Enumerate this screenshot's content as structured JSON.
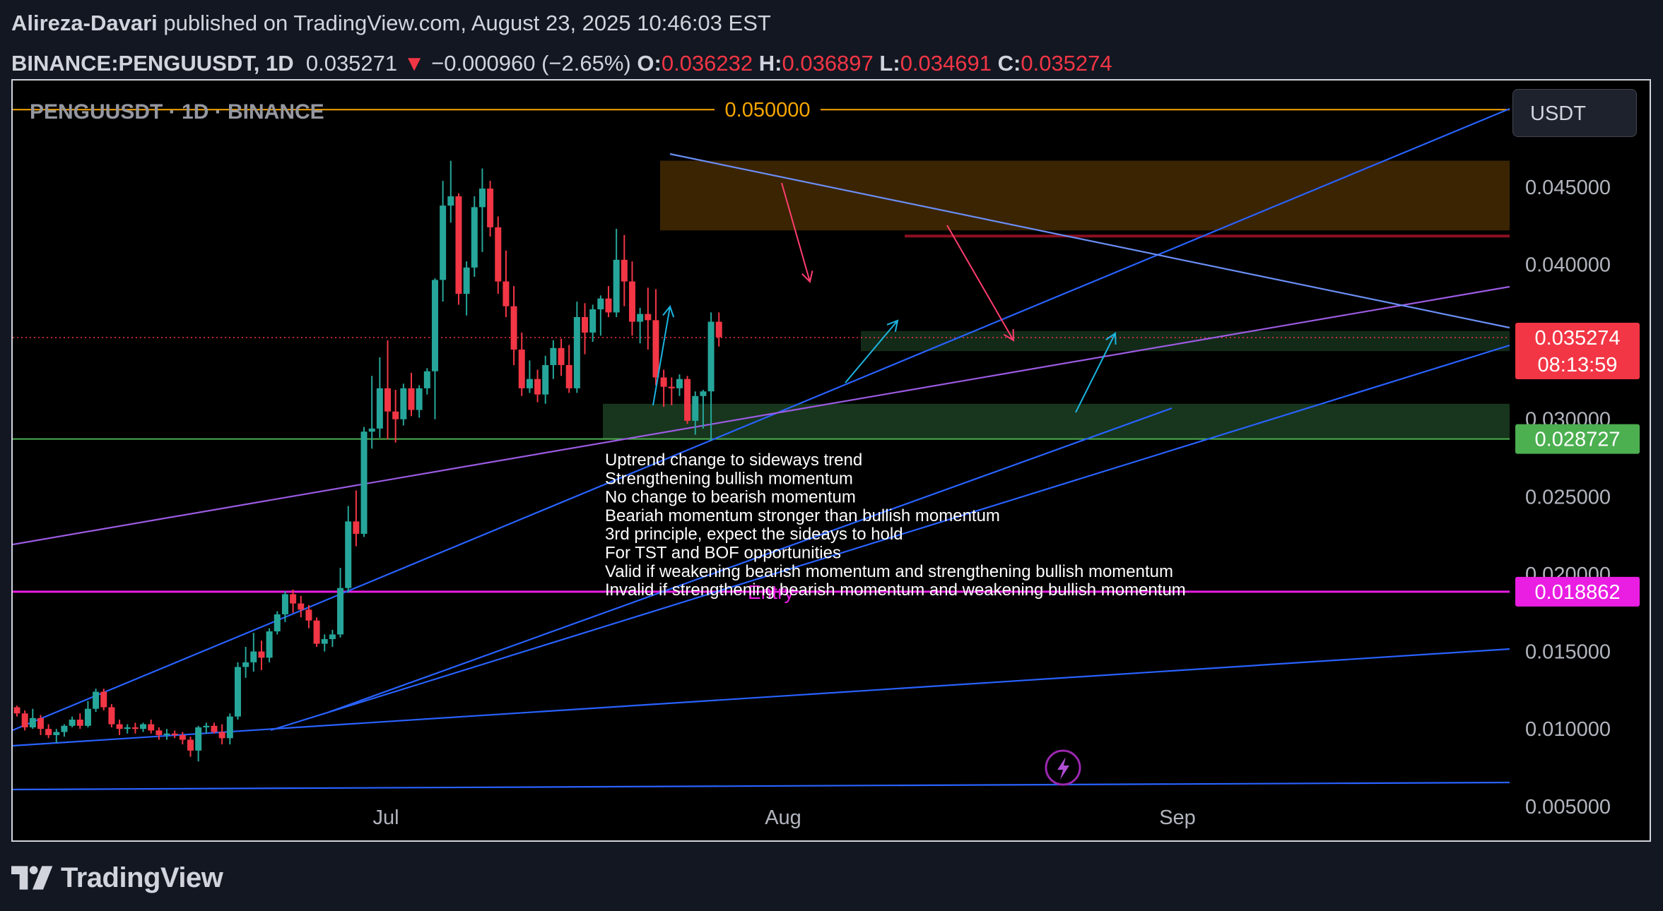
{
  "header": {
    "author": "Alireza-Davari",
    "published": " published on TradingView.com, August 23, 2025 10:46:03 EST",
    "symbol": "BINANCE:PENGUUSDT, 1D",
    "price": "0.035271",
    "change_arrow": "▼",
    "change": "−0.000960 (−2.65%)",
    "o_label": "O:",
    "o_value": "0.036232",
    "h_label": "H:",
    "h_value": "0.036897",
    "l_label": "L:",
    "l_value": "0.034691",
    "c_label": "C:",
    "c_value": "0.035274"
  },
  "chart": {
    "watermark": "PENGUUSDT · 1D · BINANCE",
    "unit_button": "USDT",
    "brand": "TradingView"
  },
  "colors": {
    "up": "#26a69a",
    "down": "#f23645",
    "price_line": "#f23645",
    "target_line": "#f7a600",
    "entry_line": "#e91ee2",
    "support_tag": "#4caf50",
    "trend_line": "#2962ff",
    "purple_line": "#9c5be3",
    "arrow_cyan": "#1cb5e0",
    "arrow_pink": "#ff3d6e"
  },
  "chart_data": {
    "type": "candlestick",
    "symbol": "BINANCE:PENGUUSDT",
    "interval": "1D",
    "ylim": [
      0.0028,
      0.05188
    ],
    "y_ticks": [
      "0.045000",
      "0.040000",
      "0.030000",
      "0.025000",
      "0.020000",
      "0.015000",
      "0.010000",
      "0.005000"
    ],
    "x_ticks": [
      "Jul",
      "Aug",
      "Sep"
    ],
    "price_tags": [
      {
        "value": "0.035274",
        "sub": "08:13:59",
        "color": "#f23645"
      },
      {
        "value": "0.028727",
        "color": "#4caf50"
      },
      {
        "value": "0.018862",
        "color": "#e91ee2"
      }
    ],
    "levels": [
      {
        "label": "0.050000",
        "value": 0.05,
        "color": "#f7a600"
      },
      {
        "value": 0.028727,
        "color": "#4caf50"
      },
      {
        "label": "Entry",
        "value": 0.018862,
        "color": "#e91ee2"
      }
    ],
    "zones": [
      {
        "y_from": 0.0422,
        "y_to": 0.0467,
        "color": "#3b2402",
        "edge": "#8a1020"
      },
      {
        "y_from": 0.0287,
        "y_to": 0.031,
        "color": "#17361d"
      }
    ],
    "candles": [
      [
        0.0114,
        0.0115,
        0.0108,
        0.011
      ],
      [
        0.011,
        0.0112,
        0.0099,
        0.0101
      ],
      [
        0.0101,
        0.0113,
        0.01,
        0.0107
      ],
      [
        0.0107,
        0.0109,
        0.0096,
        0.01
      ],
      [
        0.01,
        0.0103,
        0.0094,
        0.0096
      ],
      [
        0.0096,
        0.01,
        0.0091,
        0.0098
      ],
      [
        0.0098,
        0.0103,
        0.0095,
        0.0102
      ],
      [
        0.0102,
        0.0108,
        0.0101,
        0.0106
      ],
      [
        0.0106,
        0.011,
        0.01,
        0.0102
      ],
      [
        0.0102,
        0.0118,
        0.0101,
        0.0113
      ],
      [
        0.0113,
        0.0126,
        0.0111,
        0.0124
      ],
      [
        0.0124,
        0.0126,
        0.0112,
        0.0114
      ],
      [
        0.0114,
        0.0116,
        0.0101,
        0.0103
      ],
      [
        0.0103,
        0.0106,
        0.0096,
        0.01
      ],
      [
        0.01,
        0.0103,
        0.0097,
        0.0101
      ],
      [
        0.0101,
        0.0104,
        0.0097,
        0.01
      ],
      [
        0.01,
        0.0104,
        0.0098,
        0.0103
      ],
      [
        0.0103,
        0.0106,
        0.0097,
        0.0099
      ],
      [
        0.0099,
        0.0101,
        0.0093,
        0.0096
      ],
      [
        0.0096,
        0.01,
        0.0093,
        0.0097
      ],
      [
        0.0097,
        0.0099,
        0.0094,
        0.0096
      ],
      [
        0.0096,
        0.0098,
        0.009,
        0.0093
      ],
      [
        0.0093,
        0.0095,
        0.0082,
        0.0086
      ],
      [
        0.0086,
        0.0102,
        0.0079,
        0.0101
      ],
      [
        0.0101,
        0.0104,
        0.0097,
        0.0102
      ],
      [
        0.0102,
        0.0104,
        0.0097,
        0.0098
      ],
      [
        0.0098,
        0.0103,
        0.009,
        0.0094
      ],
      [
        0.0094,
        0.011,
        0.009,
        0.0108
      ],
      [
        0.0108,
        0.0143,
        0.0106,
        0.014
      ],
      [
        0.014,
        0.0153,
        0.0133,
        0.0143
      ],
      [
        0.0143,
        0.0162,
        0.0137,
        0.015
      ],
      [
        0.015,
        0.0157,
        0.0138,
        0.0146
      ],
      [
        0.0146,
        0.0165,
        0.0143,
        0.0163
      ],
      [
        0.0163,
        0.0176,
        0.0161,
        0.0174
      ],
      [
        0.0174,
        0.0189,
        0.0169,
        0.0187
      ],
      [
        0.0187,
        0.019,
        0.0175,
        0.0181
      ],
      [
        0.0181,
        0.0186,
        0.0172,
        0.0177
      ],
      [
        0.0177,
        0.018,
        0.0165,
        0.017
      ],
      [
        0.017,
        0.0172,
        0.0153,
        0.0155
      ],
      [
        0.0155,
        0.0161,
        0.015,
        0.0158
      ],
      [
        0.0158,
        0.0164,
        0.0153,
        0.0161
      ],
      [
        0.0161,
        0.0204,
        0.0159,
        0.0191
      ],
      [
        0.0191,
        0.0244,
        0.0188,
        0.0234
      ],
      [
        0.0234,
        0.0254,
        0.0218,
        0.0226
      ],
      [
        0.0226,
        0.0295,
        0.0224,
        0.0292
      ],
      [
        0.0292,
        0.0328,
        0.0281,
        0.0294
      ],
      [
        0.0294,
        0.034,
        0.0288,
        0.032
      ],
      [
        0.032,
        0.0351,
        0.0287,
        0.0305
      ],
      [
        0.0305,
        0.0319,
        0.0285,
        0.03
      ],
      [
        0.03,
        0.0323,
        0.0296,
        0.032
      ],
      [
        0.032,
        0.033,
        0.0302,
        0.0306
      ],
      [
        0.0306,
        0.0322,
        0.0301,
        0.032
      ],
      [
        0.032,
        0.0333,
        0.0316,
        0.0331
      ],
      [
        0.0331,
        0.0391,
        0.03,
        0.039
      ],
      [
        0.039,
        0.0454,
        0.0376,
        0.0438
      ],
      [
        0.0438,
        0.0467,
        0.0427,
        0.0444
      ],
      [
        0.0444,
        0.0446,
        0.0374,
        0.0381
      ],
      [
        0.0381,
        0.0402,
        0.0367,
        0.0398
      ],
      [
        0.0398,
        0.0444,
        0.0392,
        0.0437
      ],
      [
        0.0437,
        0.0462,
        0.0408,
        0.0449
      ],
      [
        0.0449,
        0.0454,
        0.0418,
        0.0424
      ],
      [
        0.0424,
        0.0431,
        0.0381,
        0.0389
      ],
      [
        0.0389,
        0.0409,
        0.0366,
        0.0373
      ],
      [
        0.0373,
        0.0386,
        0.0335,
        0.0345
      ],
      [
        0.0345,
        0.0356,
        0.0315,
        0.032
      ],
      [
        0.032,
        0.0338,
        0.0317,
        0.0326
      ],
      [
        0.0326,
        0.0332,
        0.0311,
        0.0316
      ],
      [
        0.0316,
        0.0341,
        0.031,
        0.0335
      ],
      [
        0.0335,
        0.0351,
        0.0326,
        0.0346
      ],
      [
        0.0346,
        0.0352,
        0.0328,
        0.0335
      ],
      [
        0.0335,
        0.0348,
        0.0317,
        0.032
      ],
      [
        0.032,
        0.0376,
        0.0317,
        0.0366
      ],
      [
        0.0366,
        0.0375,
        0.0342,
        0.0356
      ],
      [
        0.0356,
        0.0374,
        0.035,
        0.0371
      ],
      [
        0.0371,
        0.038,
        0.0354,
        0.0378
      ],
      [
        0.0378,
        0.0386,
        0.0366,
        0.0369
      ],
      [
        0.0369,
        0.0423,
        0.0366,
        0.0403
      ],
      [
        0.0403,
        0.0419,
        0.0373,
        0.0389
      ],
      [
        0.0389,
        0.0402,
        0.0354,
        0.0363
      ],
      [
        0.0363,
        0.0372,
        0.0349,
        0.0368
      ],
      [
        0.0368,
        0.0385,
        0.0345,
        0.0364
      ],
      [
        0.0364,
        0.0384,
        0.0322,
        0.0327
      ],
      [
        0.0327,
        0.0332,
        0.0308,
        0.0321
      ],
      [
        0.0321,
        0.0327,
        0.0309,
        0.032
      ],
      [
        0.032,
        0.0329,
        0.0315,
        0.0326
      ],
      [
        0.0326,
        0.0328,
        0.0297,
        0.0299
      ],
      [
        0.0299,
        0.0318,
        0.029,
        0.0315
      ],
      [
        0.0315,
        0.0319,
        0.0294,
        0.0318
      ],
      [
        0.0318,
        0.0369,
        0.0286,
        0.0363
      ],
      [
        0.0363,
        0.0369,
        0.0347,
        0.0353
      ]
    ],
    "annotation_lines": [
      "Uptrend change to sideways trend",
      "Strengthening bullish momentum",
      "No change to bearish momentum",
      "Beariah momentum stronger than bullish momentum",
      "3rd principle, expect the sideays to hold",
      "For TST and BOF opportunities",
      "Valid if weakening bearish momentum and strengthening bullish momentum",
      "Invalid if strengthening bearish momentum and weakening bullish momentum"
    ]
  }
}
